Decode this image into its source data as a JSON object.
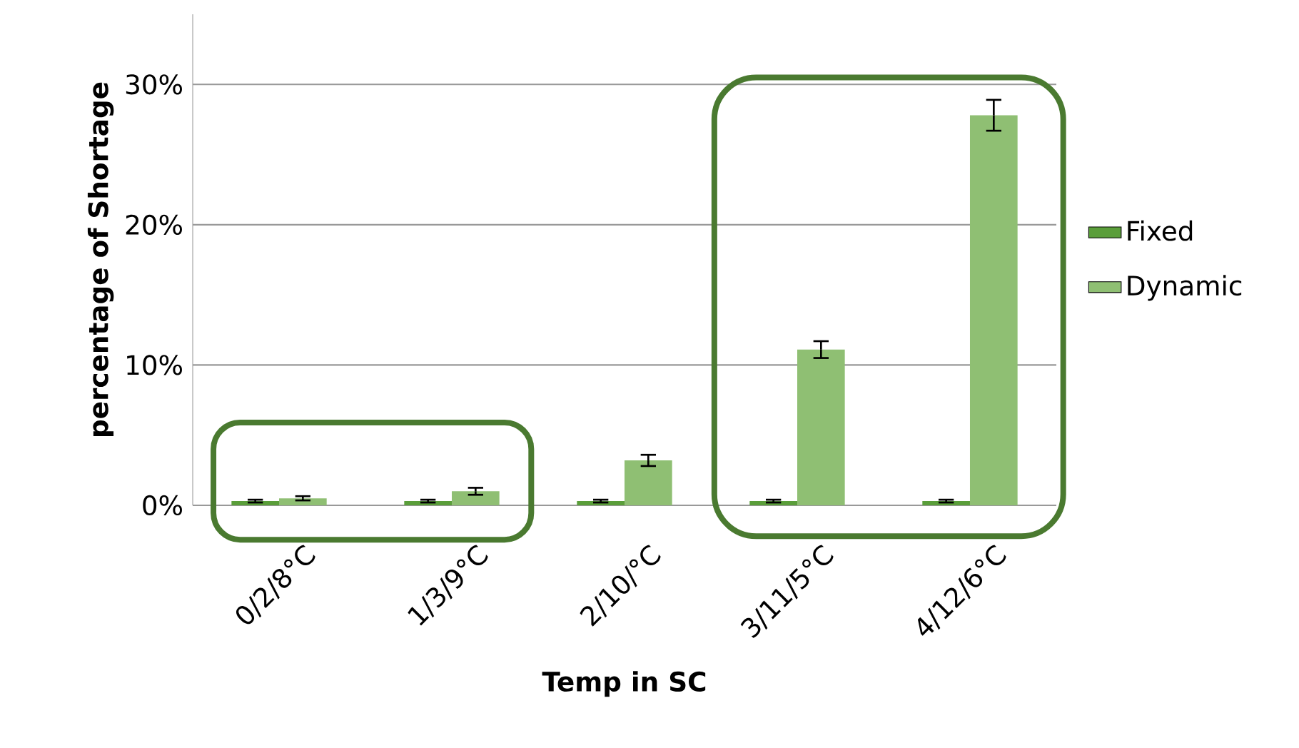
{
  "chart_data": {
    "type": "bar",
    "xlabel": "Temp in SC",
    "ylabel": "percentage of Shortage",
    "categories": [
      "0/2/8°C",
      "1/3/9°C",
      "2/10/°C",
      "3/11/5°C",
      "4/12/6°C"
    ],
    "series": [
      {
        "name": "Fixed",
        "color": "#5a9e3a",
        "values": [
          0.3,
          0.3,
          0.3,
          0.3,
          0.3
        ],
        "errors": [
          0.1,
          0.1,
          0.1,
          0.1,
          0.1
        ]
      },
      {
        "name": "Dynamic",
        "color": "#8fbf73",
        "values": [
          0.5,
          1.0,
          3.2,
          11.1,
          27.8
        ],
        "errors": [
          0.15,
          0.25,
          0.4,
          0.6,
          1.1
        ]
      }
    ],
    "ylim": [
      0,
      35
    ],
    "yticks": [
      {
        "value": 0,
        "label": "0%"
      },
      {
        "value": 10,
        "label": "10%"
      },
      {
        "value": 20,
        "label": "20%"
      },
      {
        "value": 30,
        "label": "30%"
      }
    ],
    "grid": "y",
    "legend": "right"
  }
}
